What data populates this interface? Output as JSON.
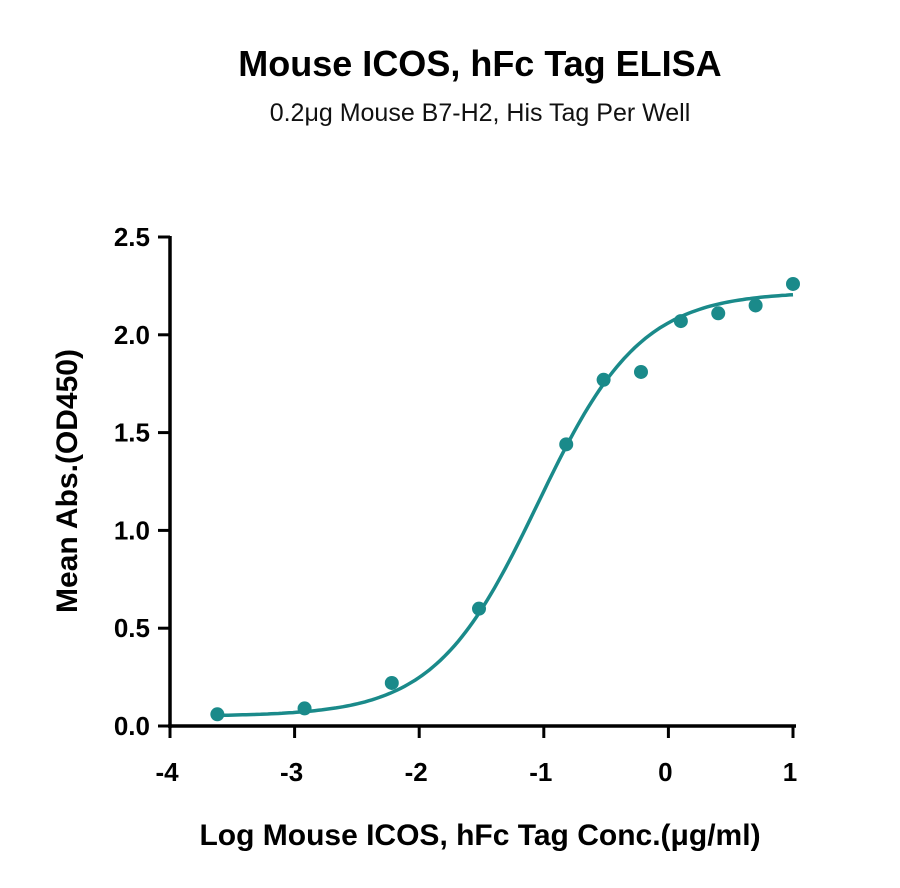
{
  "chart_data": {
    "type": "scatter",
    "title": "Mouse ICOS, hFc Tag ELISA",
    "subtitle": "0.2μg Mouse B7-H2, His Tag Per Well",
    "xlabel": "Log Mouse ICOS, hFc Tag Conc.(μg/ml)",
    "ylabel": "Mean Abs.(OD450)",
    "xlim": [
      -4,
      1
    ],
    "ylim": [
      0,
      2.5
    ],
    "x_ticks": [
      "-4",
      "-3",
      "-2",
      "-1",
      "0",
      "1"
    ],
    "y_ticks": [
      "0.0",
      "0.5",
      "1.0",
      "1.5",
      "2.0",
      "2.5"
    ],
    "grid": false,
    "color": "#1a8a8a",
    "series": [
      {
        "points": [
          {
            "x": -3.62,
            "y": 0.06
          },
          {
            "x": -2.92,
            "y": 0.09
          },
          {
            "x": -2.22,
            "y": 0.22
          },
          {
            "x": -1.52,
            "y": 0.6
          },
          {
            "x": -0.82,
            "y": 1.44
          },
          {
            "x": -0.52,
            "y": 1.77
          },
          {
            "x": -0.22,
            "y": 1.81
          },
          {
            "x": 0.1,
            "y": 2.07
          },
          {
            "x": 0.4,
            "y": 2.11
          },
          {
            "x": 0.7,
            "y": 2.15
          },
          {
            "x": 1.0,
            "y": 2.26
          }
        ],
        "fit": {
          "model": "4PL",
          "bottom": 0.05,
          "top": 2.22,
          "log_ec50": -1.05,
          "hill_slope": 1.05
        }
      }
    ]
  }
}
